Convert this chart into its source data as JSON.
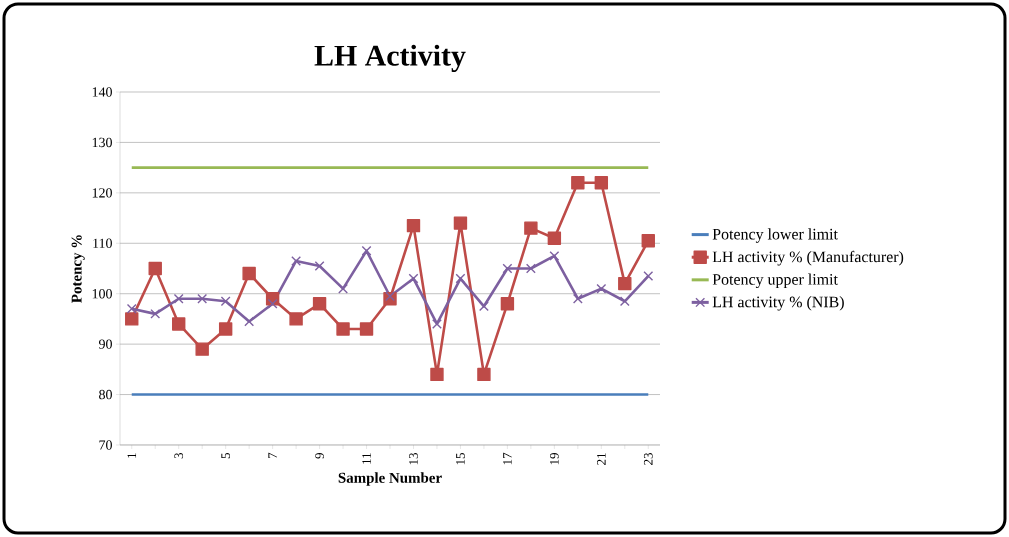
{
  "chart_data": {
    "type": "line",
    "title": "LH Activity",
    "xlabel": "Sample Number",
    "ylabel": "Potency %",
    "categories": [
      "1",
      null,
      "3",
      null,
      "5",
      null,
      "7",
      null,
      "9",
      null,
      "11",
      null,
      "13",
      null,
      "15",
      null,
      "17",
      null,
      "19",
      null,
      "21",
      null,
      "23"
    ],
    "series": [
      {
        "name": "Potency lower limit",
        "color": "#4a7ebb",
        "marker": "none",
        "values": [
          80,
          80,
          80,
          80,
          80,
          80,
          80,
          80,
          80,
          80,
          80,
          80,
          80,
          80,
          80,
          80,
          80,
          80,
          80,
          80,
          80,
          80,
          80
        ]
      },
      {
        "name": "LH activity % (Manufacturer)",
        "color": "#be4b48",
        "marker": "square",
        "values": [
          95,
          105,
          94,
          89,
          93,
          104,
          99,
          95,
          98,
          93,
          93,
          99,
          113.5,
          84,
          114,
          84,
          98,
          113,
          111,
          122,
          122,
          102,
          110.5
        ]
      },
      {
        "name": "Potency upper limit",
        "color": "#98b954",
        "marker": "none",
        "values": [
          125,
          125,
          125,
          125,
          125,
          125,
          125,
          125,
          125,
          125,
          125,
          125,
          125,
          125,
          125,
          125,
          125,
          125,
          125,
          125,
          125,
          125,
          125
        ]
      },
      {
        "name": "LH activity % (NIB)",
        "color": "#7d60a0",
        "marker": "cross",
        "values": [
          97,
          96,
          99,
          99,
          98.5,
          94.5,
          98,
          106.5,
          105.5,
          101,
          108.5,
          99.5,
          103,
          94,
          103,
          97.5,
          105,
          105,
          107.5,
          99,
          101,
          98.5,
          103.5
        ]
      }
    ],
    "ylim": [
      70,
      140
    ],
    "yticks": [
      70,
      80,
      90,
      100,
      110,
      120,
      130,
      140
    ],
    "grid": "y",
    "legend": "right",
    "line_style": "solid"
  }
}
